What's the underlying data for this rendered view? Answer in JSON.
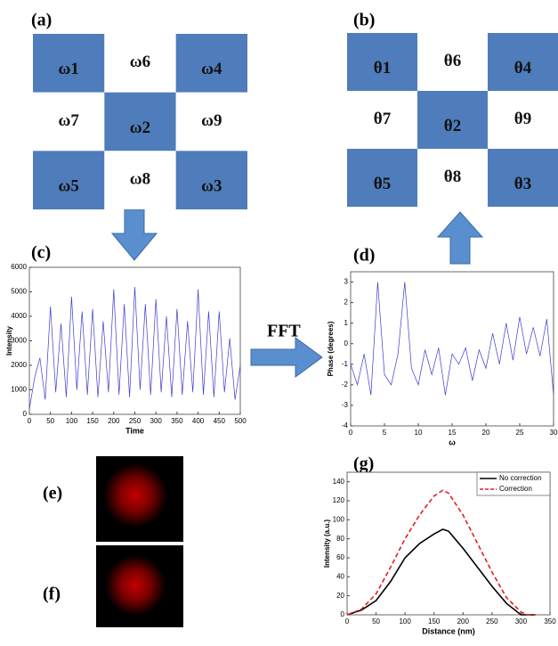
{
  "panel_a": {
    "label": "(a)",
    "cells": [
      [
        "ω1",
        "ω6",
        "ω4"
      ],
      [
        "ω7",
        "ω2",
        "ω9"
      ],
      [
        "ω5",
        "ω8",
        "ω3"
      ]
    ]
  },
  "panel_b": {
    "label": "(b)",
    "cells": [
      [
        "θ1",
        "θ6",
        "θ4"
      ],
      [
        "θ7",
        "θ2",
        "θ9"
      ],
      [
        "θ5",
        "θ8",
        "θ3"
      ]
    ]
  },
  "fft_label": "FFT",
  "panel_e": {
    "label": "(e)"
  },
  "panel_f": {
    "label": "(f)"
  },
  "chart_data": [
    {
      "type": "line",
      "panel_label": "(c)",
      "x_label": "Time",
      "y_label": "Intensity",
      "x": [
        0,
        12.5,
        25,
        37.5,
        50,
        62.5,
        75,
        87.5,
        100,
        112.5,
        125,
        137.5,
        150,
        162.5,
        175,
        187.5,
        200,
        212.5,
        225,
        237.5,
        250,
        262.5,
        275,
        287.5,
        300,
        312.5,
        325,
        337.5,
        350,
        362.5,
        375,
        387.5,
        400,
        412.5,
        425,
        437.5,
        450,
        462.5,
        475,
        487.5,
        500
      ],
      "series": [
        {
          "color": "#3b3bd0",
          "values": [
            200,
            1500,
            2300,
            600,
            4400,
            900,
            3700,
            700,
            4800,
            1000,
            4200,
            800,
            4300,
            700,
            3800,
            900,
            5100,
            800,
            4500,
            700,
            5200,
            1000,
            4500,
            800,
            4700,
            900,
            4000,
            700,
            4300,
            800,
            3800,
            900,
            5100,
            800,
            4200,
            700,
            4200,
            900,
            3100,
            600,
            2000
          ]
        }
      ],
      "xlim": [
        0,
        500
      ],
      "xticks": [
        0,
        50,
        100,
        150,
        200,
        250,
        300,
        350,
        400,
        450,
        500
      ],
      "ylim": [
        0,
        6000
      ],
      "yticks": [
        0,
        1000,
        2000,
        3000,
        4000,
        5000,
        6000
      ]
    },
    {
      "type": "line",
      "panel_label": "(d)",
      "x_label": "ω",
      "y_label": "Phase (degrees)",
      "x": [
        0,
        1,
        2,
        3,
        4,
        5,
        6,
        7,
        8,
        9,
        10,
        11,
        12,
        13,
        14,
        15,
        16,
        17,
        18,
        19,
        20,
        21,
        22,
        23,
        24,
        25,
        26,
        27,
        28,
        29,
        30
      ],
      "series": [
        {
          "color": "#3b3bd0",
          "values": [
            -1,
            -2,
            -0.5,
            -2.5,
            3,
            -1.5,
            -2,
            -0.5,
            3,
            -1.2,
            -2,
            -0.3,
            -1.5,
            -0.2,
            -2.5,
            -0.5,
            -1,
            -0.2,
            -1.8,
            -0.3,
            -1.2,
            0.5,
            -1,
            1,
            -0.8,
            1.3,
            -0.5,
            0.8,
            -0.6,
            1.2,
            -2.5
          ]
        }
      ],
      "xlim": [
        0,
        30
      ],
      "xticks": [
        0,
        5,
        10,
        15,
        20,
        25,
        30
      ],
      "ylim": [
        -4,
        3.5
      ],
      "yticks": [
        -4,
        -3,
        -2,
        -1,
        0,
        1,
        2,
        3
      ]
    },
    {
      "type": "line",
      "panel_label": "(g)",
      "x_label": "Distance (nm)",
      "y_label": "Intensity (a.u.)",
      "x": [
        0,
        25,
        50,
        75,
        100,
        125,
        150,
        165,
        175,
        200,
        225,
        250,
        275,
        300,
        310,
        325
      ],
      "series": [
        {
          "name": "No correction",
          "color": "#000000",
          "dash": false,
          "values": [
            0,
            5,
            15,
            35,
            60,
            75,
            85,
            90,
            88,
            70,
            50,
            30,
            12,
            0,
            0,
            0
          ]
        },
        {
          "name": "Correction",
          "color": "#e02020",
          "dash": true,
          "values": [
            0,
            6,
            22,
            50,
            80,
            105,
            125,
            131,
            128,
            105,
            75,
            45,
            18,
            3,
            0,
            0
          ]
        }
      ],
      "xlim": [
        0,
        350
      ],
      "xticks": [
        0,
        50,
        100,
        150,
        200,
        250,
        300,
        350
      ],
      "ylim": [
        0,
        150
      ],
      "yticks": [
        0,
        20,
        40,
        60,
        80,
        100,
        120,
        140
      ],
      "legend": "upper right"
    }
  ]
}
